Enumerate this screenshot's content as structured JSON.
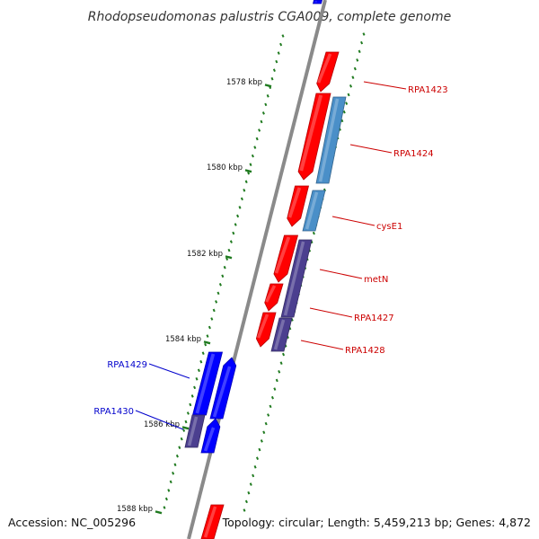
{
  "title": "Rhodopseudomonas palustris CGA009, complete genome",
  "accession": "Accession: NC_005296",
  "topology": "Topology: circular; Length: 5,459,213 bp; Genes: 4,872",
  "colors": {
    "backbone": "#8a8a8a",
    "ticks": "#1f7a1f",
    "forward_gene": "#ff0000",
    "reverse_gene": "#0000ff",
    "light_blue_feature": "#4a8fc8",
    "purple_feature": "#4b3f8f",
    "forward_label": "#cc0000",
    "reverse_label": "#0000cc"
  },
  "kbp_labels": [
    "1578 kbp",
    "1580 kbp",
    "1582 kbp",
    "1584 kbp",
    "1586 kbp",
    "1588 kbp"
  ],
  "genes": [
    {
      "name": "RPA1423",
      "strand": "forward"
    },
    {
      "name": "RPA1424",
      "strand": "forward"
    },
    {
      "name": "cysE1",
      "strand": "forward"
    },
    {
      "name": "metN",
      "strand": "forward"
    },
    {
      "name": "RPA1427",
      "strand": "forward"
    },
    {
      "name": "RPA1428",
      "strand": "forward"
    },
    {
      "name": "RPA1429",
      "strand": "reverse"
    },
    {
      "name": "RPA1430",
      "strand": "reverse"
    }
  ]
}
